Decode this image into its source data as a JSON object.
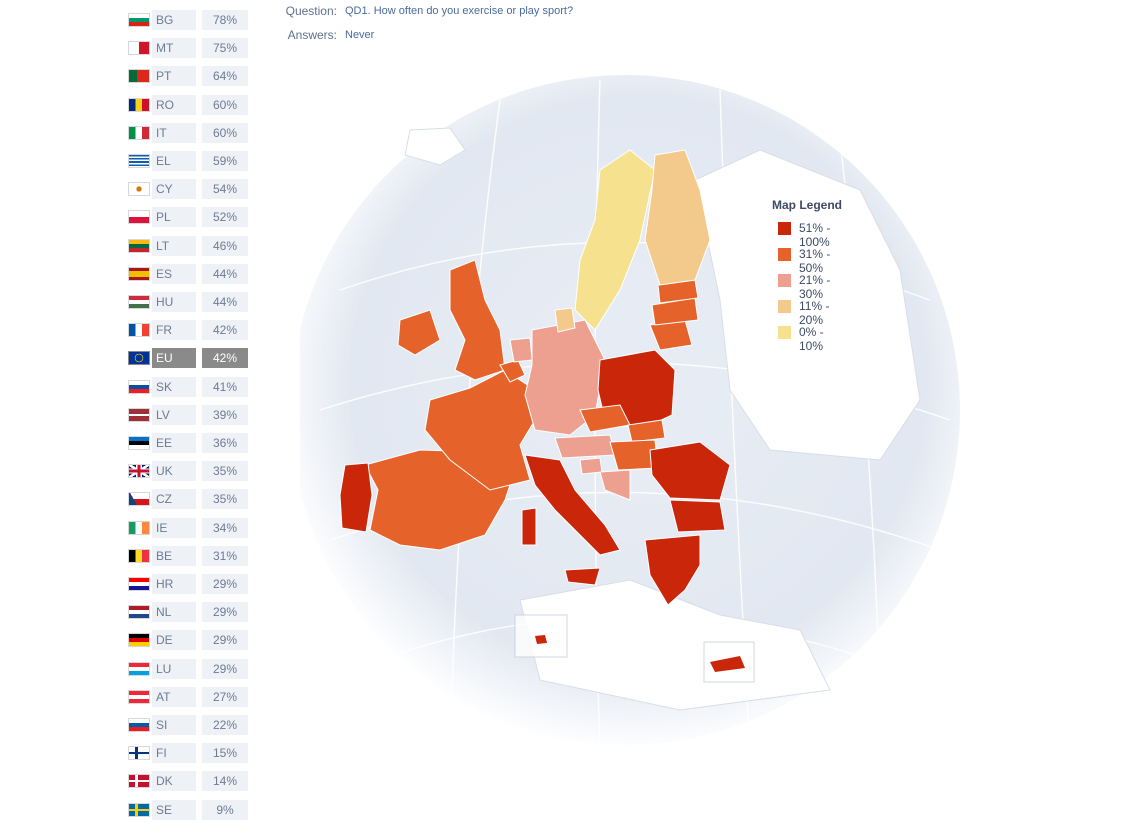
{
  "header": {
    "question_label": "Question:",
    "question_text": "QD1. How often do you exercise or play sport?",
    "answers_label": "Answers:",
    "answers_text": "Never"
  },
  "countries": [
    {
      "code": "BG",
      "value": "78%"
    },
    {
      "code": "MT",
      "value": "75%"
    },
    {
      "code": "PT",
      "value": "64%"
    },
    {
      "code": "RO",
      "value": "60%"
    },
    {
      "code": "IT",
      "value": "60%"
    },
    {
      "code": "EL",
      "value": "59%"
    },
    {
      "code": "CY",
      "value": "54%"
    },
    {
      "code": "PL",
      "value": "52%"
    },
    {
      "code": "LT",
      "value": "46%"
    },
    {
      "code": "ES",
      "value": "44%"
    },
    {
      "code": "HU",
      "value": "44%"
    },
    {
      "code": "FR",
      "value": "42%"
    },
    {
      "code": "EU",
      "value": "42%"
    },
    {
      "code": "SK",
      "value": "41%"
    },
    {
      "code": "LV",
      "value": "39%"
    },
    {
      "code": "EE",
      "value": "36%"
    },
    {
      "code": "UK",
      "value": "35%"
    },
    {
      "code": "CZ",
      "value": "35%"
    },
    {
      "code": "IE",
      "value": "34%"
    },
    {
      "code": "BE",
      "value": "31%"
    },
    {
      "code": "HR",
      "value": "29%"
    },
    {
      "code": "NL",
      "value": "29%"
    },
    {
      "code": "DE",
      "value": "29%"
    },
    {
      "code": "LU",
      "value": "29%"
    },
    {
      "code": "AT",
      "value": "27%"
    },
    {
      "code": "SI",
      "value": "22%"
    },
    {
      "code": "FI",
      "value": "15%"
    },
    {
      "code": "DK",
      "value": "14%"
    },
    {
      "code": "SE",
      "value": "9%"
    }
  ],
  "legend": {
    "title": "Map Legend",
    "items": [
      {
        "label": "51% - 100%",
        "color": "#c9260a"
      },
      {
        "label": "31% - 50%",
        "color": "#e5632a"
      },
      {
        "label": "21% - 30%",
        "color": "#eea090"
      },
      {
        "label": "11% - 20%",
        "color": "#f3c98c"
      },
      {
        "label": "0% - 10%",
        "color": "#f6e28e"
      }
    ]
  }
}
